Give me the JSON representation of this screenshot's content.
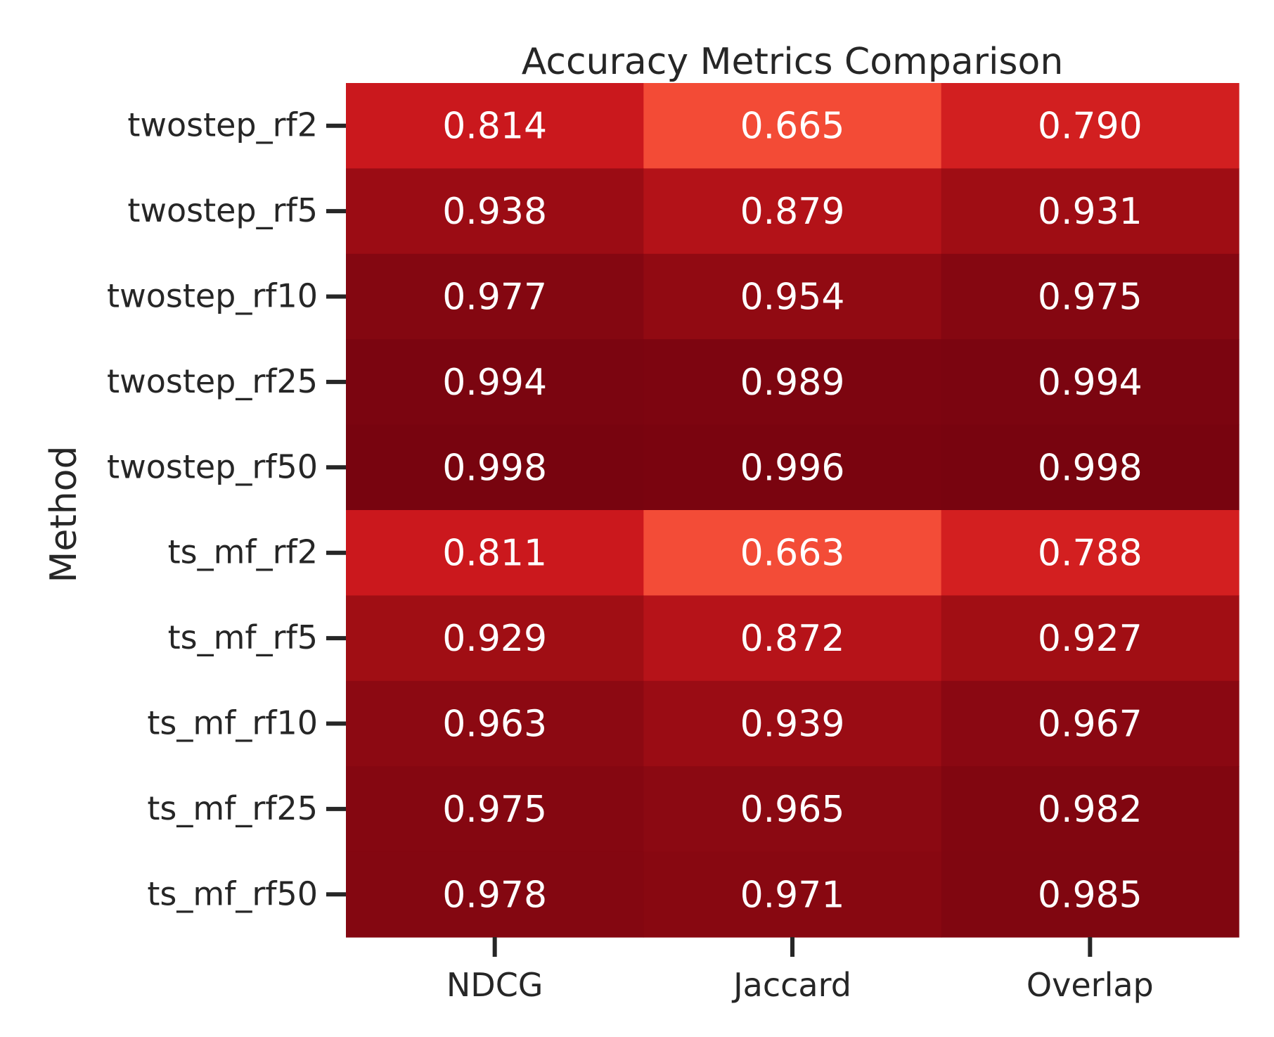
{
  "chart_data": {
    "type": "heatmap",
    "title": "Accuracy Metrics Comparison",
    "xlabel": "",
    "ylabel": "Method",
    "columns": [
      "NDCG",
      "Jaccard",
      "Overlap"
    ],
    "rows": [
      "twostep_rf2",
      "twostep_rf5",
      "twostep_rf10",
      "twostep_rf25",
      "twostep_rf50",
      "ts_mf_rf2",
      "ts_mf_rf5",
      "ts_mf_rf10",
      "ts_mf_rf25",
      "ts_mf_rf50"
    ],
    "values": [
      [
        0.814,
        0.665,
        0.79
      ],
      [
        0.938,
        0.879,
        0.931
      ],
      [
        0.977,
        0.954,
        0.975
      ],
      [
        0.994,
        0.989,
        0.994
      ],
      [
        0.998,
        0.996,
        0.998
      ],
      [
        0.811,
        0.663,
        0.788
      ],
      [
        0.929,
        0.872,
        0.927
      ],
      [
        0.963,
        0.939,
        0.967
      ],
      [
        0.975,
        0.965,
        0.982
      ],
      [
        0.978,
        0.971,
        0.985
      ]
    ],
    "value_format": "0.000",
    "colormap": "Reds",
    "color_range": [
      0.663,
      0.998
    ],
    "colorbar": false,
    "grid": false,
    "colors": {
      "text": "#262626",
      "cell_text": "#ffffff",
      "tick": "#262626"
    }
  }
}
